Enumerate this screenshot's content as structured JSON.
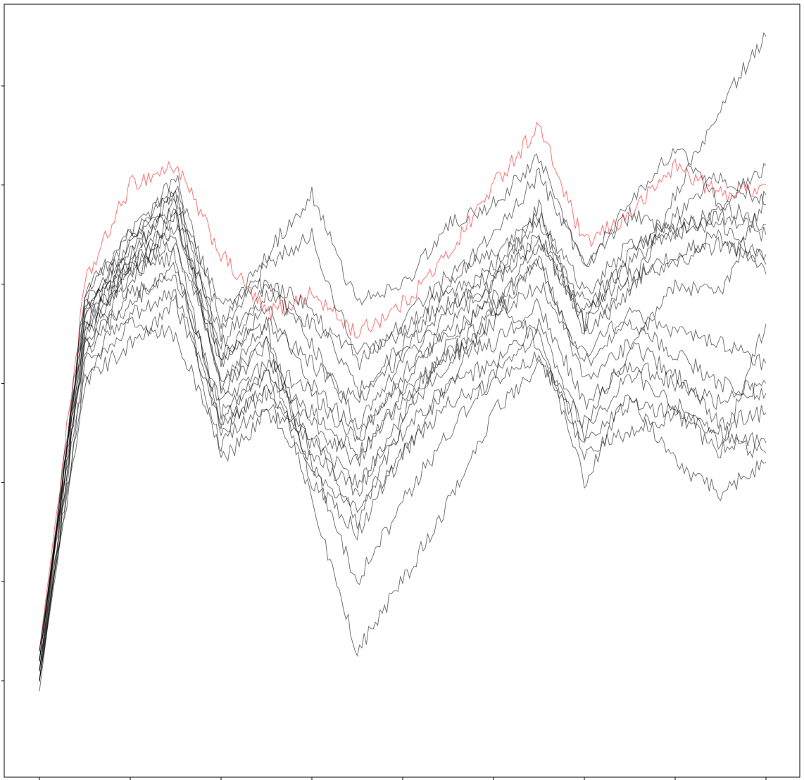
{
  "chart_data": {
    "type": "line",
    "title": "",
    "xlabel": "",
    "ylabel": "",
    "xlim": [
      0,
      8.2
    ],
    "ylim": [
      0.3,
      8.0
    ],
    "x_ticks": [
      0,
      1,
      2,
      3,
      4,
      5,
      6,
      7,
      8
    ],
    "y_ticks": [
      1,
      2,
      3,
      4,
      5,
      6,
      7
    ],
    "grid": false,
    "legend": "none",
    "line_color_default": "#000000",
    "line_color_highlight": "#ff0000",
    "line_opacity": 0.55,
    "x_step": 0.5,
    "x": [
      0,
      0.5,
      1,
      1.5,
      2,
      2.5,
      3,
      3.5,
      4,
      4.5,
      5,
      5.5,
      6,
      6.5,
      7,
      7.5,
      8
    ],
    "series": [
      {
        "color": "#ff0000",
        "values": [
          1.3,
          5.0,
          6.0,
          6.2,
          5.3,
          4.7,
          4.9,
          4.5,
          4.8,
          5.3,
          6.0,
          6.6,
          5.4,
          5.7,
          6.2,
          5.9,
          6.0
        ]
      },
      {
        "color": "#000000",
        "values": [
          1.0,
          4.9,
          5.5,
          6.0,
          4.2,
          4.9,
          4.6,
          4.3,
          4.5,
          5.0,
          5.5,
          6.1,
          5.2,
          5.7,
          5.5,
          5.8,
          5.6
        ]
      },
      {
        "color": "#000000",
        "values": [
          1.1,
          4.7,
          5.3,
          5.8,
          4.0,
          4.6,
          3.0,
          2.5,
          3.3,
          4.0,
          4.7,
          5.5,
          4.6,
          5.3,
          5.7,
          6.1,
          5.8
        ]
      },
      {
        "color": "#000000",
        "values": [
          1.2,
          4.8,
          5.4,
          5.9,
          3.9,
          4.4,
          2.8,
          1.3,
          2.0,
          2.8,
          3.7,
          4.2,
          3.6,
          4.3,
          5.0,
          4.9,
          5.9
        ]
      },
      {
        "color": "#000000",
        "values": [
          1.3,
          4.6,
          5.2,
          5.5,
          3.5,
          4.0,
          3.2,
          2.0,
          2.8,
          3.5,
          4.1,
          4.5,
          3.0,
          3.9,
          3.2,
          2.9,
          3.2
        ]
      },
      {
        "color": "#000000",
        "values": [
          1.1,
          4.4,
          5.1,
          5.3,
          3.2,
          3.7,
          3.5,
          2.6,
          3.6,
          4.4,
          4.9,
          4.4,
          3.3,
          3.5,
          3.7,
          3.3,
          4.6
        ]
      },
      {
        "color": "#000000",
        "values": [
          1.0,
          4.5,
          5.0,
          5.6,
          4.5,
          5.2,
          5.5,
          4.2,
          4.6,
          5.1,
          5.3,
          5.7,
          4.9,
          5.4,
          5.5,
          5.7,
          5.5
        ]
      },
      {
        "color": "#000000",
        "values": [
          1.2,
          4.7,
          5.3,
          5.8,
          4.8,
          5.0,
          4.8,
          3.9,
          4.4,
          4.9,
          5.1,
          5.4,
          4.7,
          5.1,
          5.2,
          5.4,
          5.3
        ]
      },
      {
        "color": "#000000",
        "values": [
          0.9,
          4.5,
          5.2,
          5.4,
          4.3,
          4.6,
          4.2,
          3.8,
          4.3,
          4.8,
          5.0,
          5.8,
          4.5,
          4.9,
          5.9,
          6.8,
          7.5
        ]
      },
      {
        "color": "#000000",
        "values": [
          1.0,
          4.3,
          4.9,
          5.1,
          3.8,
          4.2,
          3.9,
          3.4,
          4.1,
          4.5,
          4.8,
          5.2,
          4.2,
          4.6,
          4.3,
          4.0,
          3.9
        ]
      },
      {
        "color": "#000000",
        "values": [
          1.2,
          4.6,
          5.1,
          5.7,
          4.0,
          4.4,
          3.3,
          2.9,
          3.7,
          4.2,
          4.6,
          5.3,
          4.0,
          4.4,
          4.1,
          3.6,
          3.7
        ]
      },
      {
        "color": "#000000",
        "values": [
          1.1,
          4.8,
          5.4,
          6.1,
          4.6,
          5.3,
          5.9,
          4.8,
          5.0,
          5.6,
          5.8,
          6.3,
          5.2,
          5.8,
          6.4,
          5.8,
          6.2
        ]
      },
      {
        "color": "#000000",
        "values": [
          1.3,
          4.4,
          4.8,
          5.2,
          3.7,
          4.1,
          3.6,
          3.2,
          3.9,
          4.3,
          4.4,
          4.8,
          3.8,
          4.2,
          4.0,
          3.8,
          4.0
        ]
      },
      {
        "color": "#000000",
        "values": [
          1.0,
          4.2,
          4.7,
          4.9,
          3.6,
          3.9,
          3.4,
          3.0,
          3.5,
          4.0,
          4.2,
          4.6,
          3.5,
          4.1,
          3.8,
          3.4,
          3.3
        ]
      },
      {
        "color": "#000000",
        "values": [
          1.2,
          4.9,
          5.5,
          5.9,
          4.4,
          5.0,
          4.4,
          3.6,
          4.2,
          4.7,
          5.2,
          5.6,
          4.8,
          5.2,
          5.6,
          5.6,
          5.2
        ]
      },
      {
        "color": "#000000",
        "values": [
          1.1,
          4.1,
          4.6,
          4.5,
          3.4,
          3.8,
          3.1,
          2.7,
          3.3,
          3.8,
          4.0,
          4.3,
          3.4,
          3.8,
          3.7,
          3.5,
          3.4
        ]
      },
      {
        "color": "#000000",
        "values": [
          1.0,
          4.0,
          4.4,
          4.8,
          3.6,
          4.1,
          3.7,
          3.3,
          3.8,
          4.3,
          4.7,
          5.0,
          4.3,
          4.7,
          4.5,
          4.4,
          4.2
        ]
      },
      {
        "color": "#000000",
        "values": [
          1.2,
          4.7,
          5.2,
          5.7,
          4.2,
          4.8,
          4.0,
          3.5,
          4.0,
          4.6,
          5.0,
          5.5,
          4.6,
          5.0,
          5.3,
          5.5,
          5.1
        ]
      }
    ]
  }
}
